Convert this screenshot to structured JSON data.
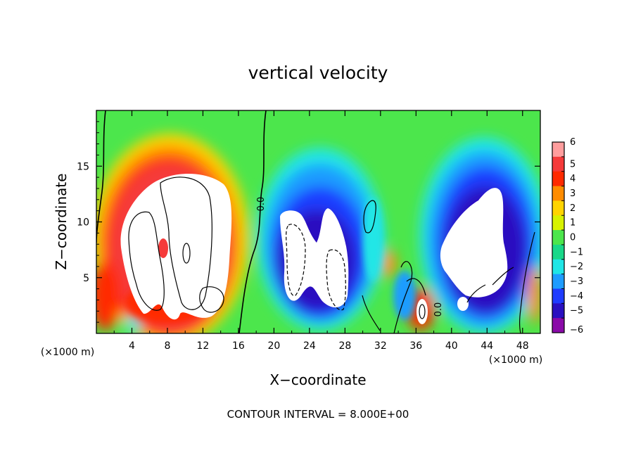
{
  "chart_data": {
    "type": "heatmap",
    "title": "vertical velocity",
    "xlabel": "X−coordinate",
    "ylabel": "Z−coordinate",
    "x_unit": "(×1000 m)",
    "x_unit_right": "(×1000 m)",
    "xlim": [
      0,
      50
    ],
    "ylim": [
      0,
      20
    ],
    "x_ticks": [
      4,
      8,
      12,
      16,
      20,
      24,
      28,
      32,
      36,
      40,
      44,
      48
    ],
    "y_ticks": [
      5,
      10,
      15
    ],
    "x_tick_labels": [
      "4",
      "8",
      "12",
      "16",
      "20",
      "24",
      "28",
      "32",
      "36",
      "40",
      "44",
      "48"
    ],
    "y_tick_labels": [
      "5",
      "10",
      "15"
    ],
    "colorbar": {
      "levels": [
        6,
        5,
        4,
        3,
        2,
        1,
        0,
        -1,
        -2,
        -3,
        -4,
        -5,
        -6
      ],
      "labels": [
        "6",
        "5",
        "4",
        "3",
        "2",
        "1",
        "0",
        "−1",
        "−2",
        "−3",
        "−4",
        "−5",
        "−6"
      ],
      "colors": [
        "#ff9d9d",
        "#f53a3a",
        "#ff2a00",
        "#ff8c00",
        "#ffd400",
        "#d7f200",
        "#4ce64c",
        "#19d889",
        "#20e6e6",
        "#1e9cff",
        "#1f3cff",
        "#2a10c0",
        "#8a0aa8"
      ]
    },
    "contour_levels_drawn": [
      "0.0",
      "0.0"
    ],
    "contour_interval": "CONTOUR INTERVAL = 8.000E+00",
    "features": [
      {
        "kind": "updraft",
        "x_center": 9.5,
        "z_center": 8.5,
        "x_range": [
          2,
          15
        ],
        "z_range": [
          0,
          17
        ],
        "max": ">6"
      },
      {
        "kind": "downdraft",
        "x_center": 25,
        "z_center": 6.5,
        "x_range": [
          19,
          31
        ],
        "z_range": [
          1,
          14
        ],
        "min": "<-6"
      },
      {
        "kind": "updraft",
        "x_center": 37,
        "z_center": 2,
        "x_range": [
          35.5,
          38.5
        ],
        "z_range": [
          0.5,
          3.5
        ],
        "max": ">6"
      },
      {
        "kind": "downdraft",
        "x_center": 43.5,
        "z_center": 7,
        "x_range": [
          40,
          47
        ],
        "z_range": [
          1.5,
          13
        ],
        "min": "<-6"
      }
    ]
  }
}
